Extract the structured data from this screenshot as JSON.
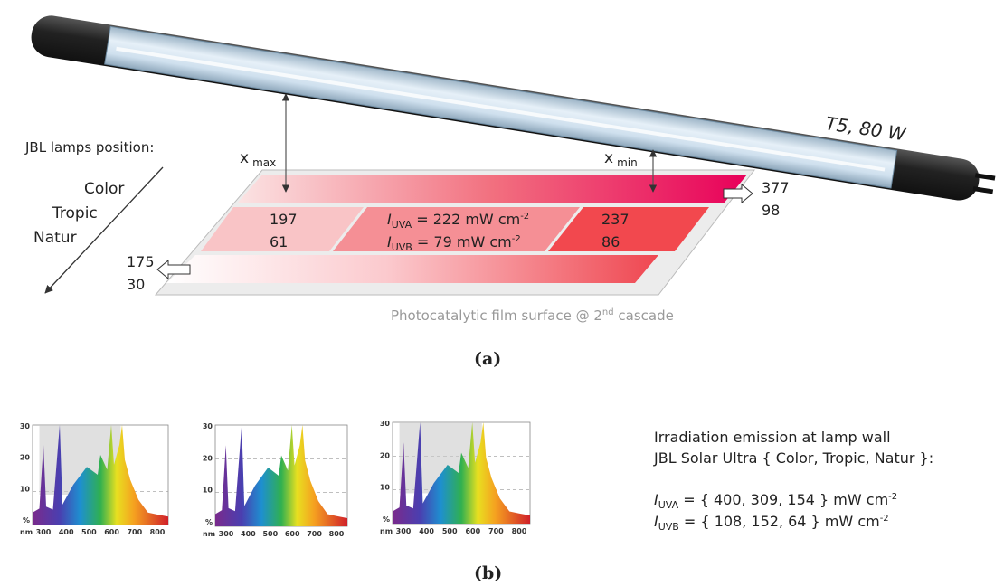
{
  "panel_a": {
    "lamp_label": "T5, 80 W",
    "positions_title": "JBL lamps position:",
    "positions": [
      "Color",
      "Tropic",
      "Natur"
    ],
    "x_max": {
      "symbol": "x",
      "sub": "max"
    },
    "x_min": {
      "symbol": "x",
      "sub": "min"
    },
    "right_outlet": [
      377,
      98
    ],
    "left_outlet": [
      175,
      30
    ],
    "left_cell": [
      197,
      61
    ],
    "right_cell": [
      237,
      86
    ],
    "center_uva": {
      "symbol": "I",
      "sub": "UVA",
      "text": " = 222 mW cm",
      "sup": "-2"
    },
    "center_uvb": {
      "symbol": "I",
      "sub": "UVB",
      "text": " = 79 mW cm",
      "sup": "-2"
    },
    "surface_caption": {
      "text": "Photocatalytic film surface @ 2",
      "sup": "nd",
      "tail": " cascade"
    },
    "label": "(a)"
  },
  "panel_b": {
    "spectra": [
      {
        "yticks": [
          "30",
          "20",
          "10",
          "%"
        ],
        "xticks": [
          "nm",
          "300",
          "400",
          "500",
          "600",
          "700",
          "800"
        ]
      },
      {
        "yticks": [
          "30",
          "20",
          "10",
          "%"
        ],
        "xticks": [
          "nm",
          "300",
          "400",
          "500",
          "600",
          "700",
          "800"
        ]
      },
      {
        "yticks": [
          "30",
          "20",
          "10",
          "%"
        ],
        "xticks": [
          "nm",
          "300",
          "400",
          "500",
          "600",
          "700",
          "800"
        ]
      }
    ],
    "lines": [
      "Irradiation emission at lamp wall",
      "JBL Solar Ultra { Color, Tropic, Natur }:"
    ],
    "uva": {
      "symbol": "I",
      "sub": "UVA",
      "text": " = { 400, 309, 154 } mW cm",
      "sup": "-2"
    },
    "uvb": {
      "symbol": "I",
      "sub": "UVB",
      "text": " = { 108, 152, 64 } mW cm",
      "sup": "-2"
    },
    "label": "(b)"
  }
}
